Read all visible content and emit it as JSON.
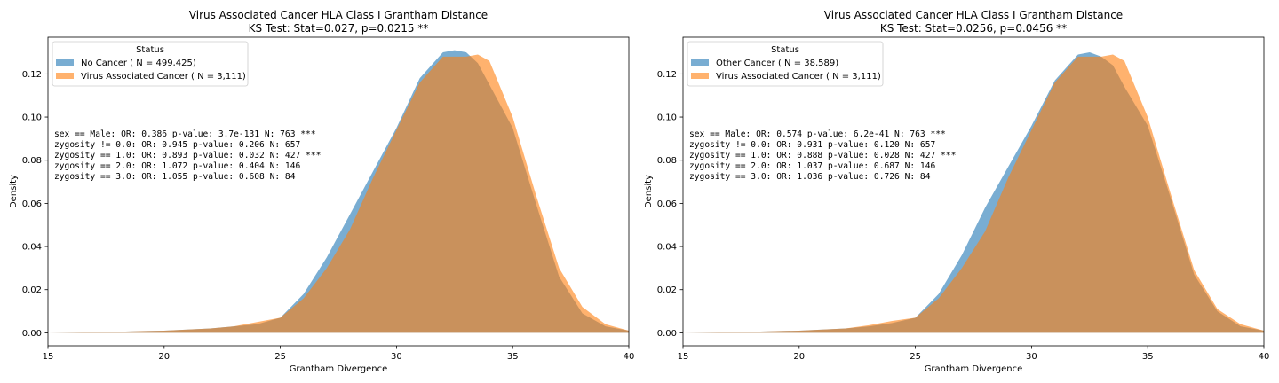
{
  "chart_data": [
    {
      "type": "area",
      "title": "Virus Associated Cancer HLA Class I Grantham Distance",
      "subtitle": "KS Test: Stat=0.027, p=0.0215 **",
      "xlabel": "Grantham Divergence",
      "ylabel": "Density",
      "xlim": [
        15,
        40
      ],
      "ylim": [
        -0.006,
        0.137
      ],
      "xticks": [
        "15",
        "20",
        "25",
        "30",
        "35",
        "40"
      ],
      "yticks": [
        "0.00",
        "0.02",
        "0.04",
        "0.06",
        "0.08",
        "0.10",
        "0.12"
      ],
      "grid": false,
      "legend": {
        "title": "Status",
        "placement": "top-left",
        "entries": [
          "No Cancer ( N = 499,425)",
          "Virus Associated Cancer ( N = 3,111)"
        ]
      },
      "annotations": [
        "sex == Male: OR: 0.386 p-value: 3.7e-131 N: 763 ***",
        "zygosity != 0.0: OR: 0.945 p-value: 0.206 N: 657",
        "zygosity == 1.0: OR: 0.893 p-value: 0.032 N: 427 ***",
        "zygosity == 2.0: OR: 1.072 p-value: 0.404 N: 146",
        "zygosity == 3.0: OR: 1.055 p-value: 0.608 N: 84"
      ],
      "x": [
        15,
        17,
        18,
        19,
        20,
        21,
        22,
        23,
        24,
        25,
        26,
        27,
        28,
        29,
        30,
        31,
        32,
        32.5,
        33,
        33.5,
        34,
        35,
        36,
        37,
        38,
        39,
        40
      ],
      "series": [
        {
          "name": "No Cancer ( N = 499,425)",
          "color": "#1f77b4",
          "values": [
            0,
            0.0002,
            0.0005,
            0.0008,
            0.001,
            0.0015,
            0.002,
            0.003,
            0.004,
            0.007,
            0.018,
            0.035,
            0.055,
            0.075,
            0.095,
            0.118,
            0.13,
            0.131,
            0.13,
            0.125,
            0.115,
            0.095,
            0.06,
            0.026,
            0.009,
            0.003,
            0.001
          ]
        },
        {
          "name": "Virus Associated Cancer ( N = 3,111)",
          "color": "#ff7f0e",
          "values": [
            0,
            0.0002,
            0.0005,
            0.0008,
            0.001,
            0.0015,
            0.002,
            0.003,
            0.005,
            0.007,
            0.016,
            0.03,
            0.048,
            0.072,
            0.094,
            0.116,
            0.128,
            0.128,
            0.128,
            0.129,
            0.126,
            0.1,
            0.064,
            0.03,
            0.012,
            0.004,
            0.001
          ]
        }
      ]
    },
    {
      "type": "area",
      "title": "Virus Associated Cancer HLA Class I Grantham Distance",
      "subtitle": "KS Test: Stat=0.0256, p=0.0456 **",
      "xlabel": "Grantham Divergence",
      "ylabel": "Density",
      "xlim": [
        15,
        40
      ],
      "ylim": [
        -0.006,
        0.137
      ],
      "xticks": [
        "15",
        "20",
        "25",
        "30",
        "35",
        "40"
      ],
      "yticks": [
        "0.00",
        "0.02",
        "0.04",
        "0.06",
        "0.08",
        "0.10",
        "0.12"
      ],
      "grid": false,
      "legend": {
        "title": "Status",
        "placement": "top-left",
        "entries": [
          "Other Cancer ( N = 38,589)",
          "Virus Associated Cancer ( N = 3,111)"
        ]
      },
      "annotations": [
        "sex == Male: OR: 0.574 p-value: 6.2e-41 N: 763 ***",
        "zygosity != 0.0: OR: 0.931 p-value: 0.120 N: 657",
        "zygosity == 1.0: OR: 0.888 p-value: 0.028 N: 427 ***",
        "zygosity == 2.0: OR: 1.037 p-value: 0.687 N: 146",
        "zygosity == 3.0: OR: 1.036 p-value: 0.726 N: 84"
      ],
      "x": [
        15,
        17,
        18,
        19,
        20,
        21,
        22,
        23,
        24,
        25,
        26,
        27,
        28,
        29,
        30,
        31,
        32,
        32.5,
        33,
        33.5,
        34,
        35,
        36,
        37,
        38,
        39,
        40
      ],
      "series": [
        {
          "name": "Other Cancer ( N = 38,589)",
          "color": "#1f77b4",
          "values": [
            0,
            0.0002,
            0.0005,
            0.0008,
            0.001,
            0.0015,
            0.002,
            0.003,
            0.0045,
            0.007,
            0.018,
            0.036,
            0.058,
            0.077,
            0.096,
            0.117,
            0.129,
            0.13,
            0.128,
            0.124,
            0.114,
            0.096,
            0.062,
            0.027,
            0.01,
            0.003,
            0.001
          ]
        },
        {
          "name": "Virus Associated Cancer ( N = 3,111)",
          "color": "#ff7f0e",
          "values": [
            0,
            0.0002,
            0.0005,
            0.0008,
            0.001,
            0.0015,
            0.002,
            0.0035,
            0.0055,
            0.007,
            0.016,
            0.03,
            0.047,
            0.072,
            0.094,
            0.116,
            0.128,
            0.128,
            0.128,
            0.129,
            0.126,
            0.1,
            0.064,
            0.029,
            0.011,
            0.004,
            0.001
          ]
        }
      ]
    }
  ]
}
